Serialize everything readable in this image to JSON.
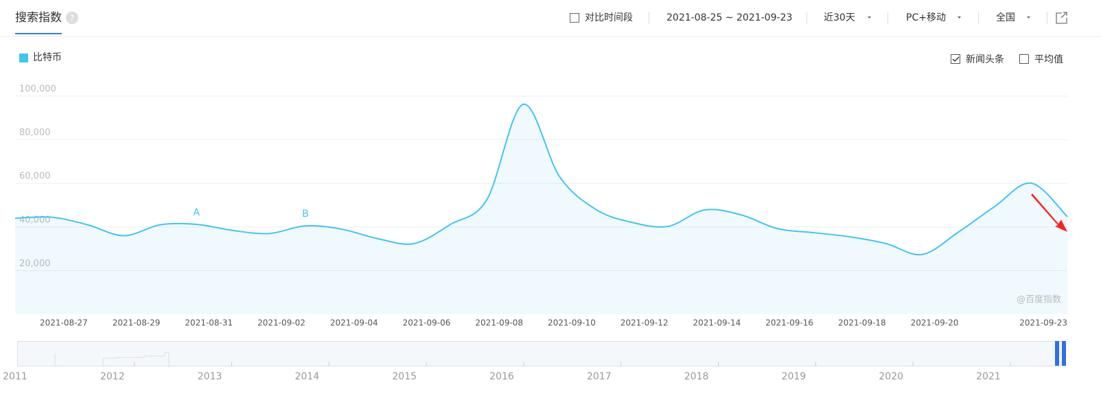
{
  "toolbar": {
    "title": "搜索指数",
    "compare": "对比时间段",
    "range": "2021-08-25 ~ 2021-09-23",
    "period": "近30天",
    "device": "PC+移动",
    "region": "全国",
    "news": "新闻头条",
    "average": "平均值",
    "watermark": "@百度指数"
  },
  "chart_data": {
    "type": "line",
    "x": [
      null,
      null,
      "2021-08-27",
      null,
      "2021-08-29",
      null,
      "2021-08-31",
      null,
      "2021-09-02",
      null,
      "2021-09-04",
      null,
      "2021-09-06",
      null,
      "2021-09-08",
      null,
      "2021-09-10",
      null,
      "2021-09-12",
      null,
      "2021-09-14",
      null,
      "2021-09-16",
      null,
      "2021-09-18",
      null,
      "2021-09-20",
      null,
      null,
      "2021-09-23"
    ],
    "series": [
      {
        "name": "比特币",
        "color": "#3ec5f0",
        "values": [
          44000,
          44500,
          41000,
          36000,
          41000,
          41200,
          38400,
          37000,
          40500,
          39000,
          34600,
          32400,
          41200,
          52500,
          96200,
          63200,
          48100,
          42100,
          40300,
          47800,
          45600,
          39300,
          37400,
          35500,
          32400,
          27400,
          37700,
          49400,
          60100,
          44700
        ]
      }
    ],
    "annotations": [
      "A",
      "B"
    ],
    "ylim": [
      0,
      100000
    ],
    "yticks": [
      {
        "value": 20000,
        "label": "20,000"
      },
      {
        "value": 40000,
        "label": "40,000"
      },
      {
        "value": 60000,
        "label": "60,000"
      },
      {
        "value": 80000,
        "label": "80,000"
      },
      {
        "value": 100000,
        "label": "100,000"
      }
    ],
    "grid": true,
    "navigator_years": [
      "2011",
      "2012",
      "2013",
      "2014",
      "2015",
      "2016",
      "2017",
      "2018",
      "2019",
      "2020",
      "2021"
    ]
  }
}
